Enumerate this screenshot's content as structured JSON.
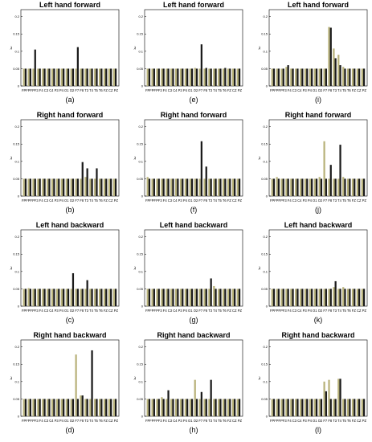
{
  "categories_text": "FPFPFPF3 F4 C3 C4 P3 P4 O1 O2 F7 F8 T3 T4 T5 T6 FZ CZ PZ",
  "ylabel": "λ",
  "yticks": [
    "0",
    "0.05",
    "0.1",
    "0.15",
    "0.2"
  ],
  "colors": {
    "series_a": "#b8b27a",
    "series_b": "#1a1a1a"
  },
  "chart_data": [
    {
      "type": "bar",
      "panel": "(a)",
      "title": "Left hand forward",
      "ylim": [
        0,
        0.22
      ],
      "series": [
        {
          "values": [
            0.05,
            0.05,
            0.05,
            0.05,
            0.05,
            0.05,
            0.05,
            0.05,
            0.05,
            0.05,
            0.05,
            0.05,
            0.05,
            0.05,
            0.05,
            0.05,
            0.05,
            0.05,
            0.05,
            0.05
          ]
        },
        {
          "values": [
            0.05,
            0.05,
            0.105,
            0.05,
            0.05,
            0.05,
            0.05,
            0.05,
            0.05,
            0.05,
            0.05,
            0.112,
            0.05,
            0.05,
            0.05,
            0.05,
            0.05,
            0.05,
            0.05,
            0.05
          ]
        }
      ]
    },
    {
      "type": "bar",
      "panel": "(e)",
      "title": "Left hand forward",
      "ylim": [
        0,
        0.22
      ],
      "series": [
        {
          "values": [
            0.05,
            0.05,
            0.05,
            0.05,
            0.05,
            0.05,
            0.05,
            0.05,
            0.05,
            0.05,
            0.052,
            0.05,
            0.05,
            0.05,
            0.05,
            0.05,
            0.05,
            0.05,
            0.05,
            0.05
          ]
        },
        {
          "values": [
            0.05,
            0.05,
            0.05,
            0.05,
            0.05,
            0.05,
            0.05,
            0.05,
            0.05,
            0.05,
            0.05,
            0.12,
            0.052,
            0.05,
            0.05,
            0.05,
            0.052,
            0.05,
            0.05,
            0.05
          ]
        }
      ]
    },
    {
      "type": "bar",
      "panel": "(i)",
      "title": "Left hand forward",
      "ylim": [
        0,
        0.22
      ],
      "series": [
        {
          "values": [
            0.05,
            0.05,
            0.05,
            0.055,
            0.05,
            0.05,
            0.05,
            0.05,
            0.05,
            0.05,
            0.05,
            0.05,
            0.17,
            0.108,
            0.09,
            0.055,
            0.05,
            0.05,
            0.05,
            0.05
          ]
        },
        {
          "values": [
            0.05,
            0.05,
            0.05,
            0.06,
            0.05,
            0.05,
            0.05,
            0.05,
            0.05,
            0.05,
            0.05,
            0.05,
            0.168,
            0.08,
            0.06,
            0.05,
            0.05,
            0.05,
            0.05,
            0.05
          ]
        }
      ]
    },
    {
      "type": "bar",
      "panel": "(b)",
      "title": "Right hand forward",
      "ylim": [
        0,
        0.22
      ],
      "series": [
        {
          "values": [
            0.05,
            0.05,
            0.05,
            0.05,
            0.05,
            0.05,
            0.05,
            0.05,
            0.05,
            0.05,
            0.05,
            0.05,
            0.05,
            0.055,
            0.05,
            0.05,
            0.05,
            0.05,
            0.05,
            0.05
          ]
        },
        {
          "values": [
            0.05,
            0.05,
            0.05,
            0.05,
            0.05,
            0.05,
            0.05,
            0.05,
            0.05,
            0.05,
            0.05,
            0.05,
            0.098,
            0.08,
            0.05,
            0.08,
            0.05,
            0.05,
            0.05,
            0.05
          ]
        }
      ]
    },
    {
      "type": "bar",
      "panel": "(f)",
      "title": "Right hand forward",
      "ylim": [
        0,
        0.22
      ],
      "series": [
        {
          "values": [
            0.055,
            0.05,
            0.05,
            0.05,
            0.05,
            0.05,
            0.05,
            0.05,
            0.05,
            0.05,
            0.05,
            0.05,
            0.05,
            0.05,
            0.05,
            0.05,
            0.05,
            0.05,
            0.05,
            0.05
          ]
        },
        {
          "values": [
            0.05,
            0.05,
            0.05,
            0.05,
            0.05,
            0.05,
            0.05,
            0.05,
            0.05,
            0.05,
            0.05,
            0.158,
            0.085,
            0.05,
            0.05,
            0.05,
            0.05,
            0.05,
            0.05,
            0.05
          ]
        }
      ]
    },
    {
      "type": "bar",
      "panel": "(j)",
      "title": "Right hand forward",
      "ylim": [
        0,
        0.22
      ],
      "series": [
        {
          "values": [
            0.05,
            0.055,
            0.05,
            0.05,
            0.05,
            0.05,
            0.05,
            0.05,
            0.05,
            0.05,
            0.055,
            0.158,
            0.05,
            0.05,
            0.05,
            0.055,
            0.05,
            0.05,
            0.05,
            0.05
          ]
        },
        {
          "values": [
            0.05,
            0.05,
            0.05,
            0.05,
            0.05,
            0.05,
            0.05,
            0.05,
            0.05,
            0.05,
            0.05,
            0.05,
            0.09,
            0.05,
            0.148,
            0.05,
            0.05,
            0.05,
            0.05,
            0.05
          ]
        }
      ]
    },
    {
      "type": "bar",
      "panel": "(c)",
      "title": "Left hand backward",
      "ylim": [
        0,
        0.22
      ],
      "series": [
        {
          "values": [
            0.05,
            0.052,
            0.05,
            0.05,
            0.05,
            0.05,
            0.05,
            0.05,
            0.05,
            0.05,
            0.05,
            0.05,
            0.05,
            0.05,
            0.05,
            0.05,
            0.05,
            0.05,
            0.05,
            0.05
          ]
        },
        {
          "values": [
            0.05,
            0.05,
            0.05,
            0.05,
            0.05,
            0.05,
            0.05,
            0.05,
            0.05,
            0.05,
            0.095,
            0.05,
            0.05,
            0.075,
            0.05,
            0.05,
            0.05,
            0.05,
            0.05,
            0.05
          ]
        }
      ]
    },
    {
      "type": "bar",
      "panel": "(g)",
      "title": "Left hand backward",
      "ylim": [
        0,
        0.22
      ],
      "series": [
        {
          "values": [
            0.05,
            0.05,
            0.05,
            0.05,
            0.05,
            0.05,
            0.05,
            0.05,
            0.05,
            0.05,
            0.05,
            0.05,
            0.05,
            0.05,
            0.058,
            0.05,
            0.05,
            0.05,
            0.05,
            0.05
          ]
        },
        {
          "values": [
            0.05,
            0.05,
            0.05,
            0.05,
            0.05,
            0.05,
            0.05,
            0.05,
            0.05,
            0.05,
            0.05,
            0.05,
            0.05,
            0.08,
            0.05,
            0.05,
            0.05,
            0.05,
            0.05,
            0.05
          ]
        }
      ]
    },
    {
      "type": "bar",
      "panel": "(k)",
      "title": "Left hand backward",
      "ylim": [
        0,
        0.22
      ],
      "series": [
        {
          "values": [
            0.05,
            0.05,
            0.05,
            0.05,
            0.05,
            0.05,
            0.05,
            0.05,
            0.05,
            0.05,
            0.05,
            0.05,
            0.05,
            0.055,
            0.05,
            0.055,
            0.05,
            0.05,
            0.05,
            0.05
          ]
        },
        {
          "values": [
            0.05,
            0.05,
            0.05,
            0.05,
            0.05,
            0.05,
            0.05,
            0.05,
            0.05,
            0.05,
            0.05,
            0.05,
            0.05,
            0.072,
            0.05,
            0.05,
            0.05,
            0.05,
            0.05,
            0.05
          ]
        }
      ]
    },
    {
      "type": "bar",
      "panel": "(d)",
      "title": "Right hand backward",
      "ylim": [
        0,
        0.22
      ],
      "series": [
        {
          "values": [
            0.05,
            0.05,
            0.05,
            0.05,
            0.05,
            0.05,
            0.05,
            0.05,
            0.05,
            0.05,
            0.05,
            0.178,
            0.06,
            0.05,
            0.05,
            0.05,
            0.05,
            0.05,
            0.05,
            0.05
          ]
        },
        {
          "values": [
            0.05,
            0.05,
            0.05,
            0.05,
            0.05,
            0.05,
            0.05,
            0.05,
            0.05,
            0.05,
            0.05,
            0.05,
            0.06,
            0.05,
            0.19,
            0.05,
            0.05,
            0.05,
            0.05,
            0.05
          ]
        }
      ]
    },
    {
      "type": "bar",
      "panel": "(h)",
      "title": "Right hand backward",
      "ylim": [
        0,
        0.22
      ],
      "series": [
        {
          "values": [
            0.05,
            0.05,
            0.05,
            0.055,
            0.05,
            0.05,
            0.05,
            0.05,
            0.05,
            0.05,
            0.105,
            0.05,
            0.05,
            0.05,
            0.05,
            0.05,
            0.05,
            0.05,
            0.05,
            0.05
          ]
        },
        {
          "values": [
            0.05,
            0.05,
            0.05,
            0.05,
            0.075,
            0.05,
            0.05,
            0.05,
            0.05,
            0.05,
            0.05,
            0.07,
            0.05,
            0.105,
            0.05,
            0.05,
            0.05,
            0.05,
            0.05,
            0.05
          ]
        }
      ]
    },
    {
      "type": "bar",
      "panel": "(l)",
      "title": "Right hand backward",
      "ylim": [
        0,
        0.22
      ],
      "series": [
        {
          "values": [
            0.05,
            0.05,
            0.05,
            0.05,
            0.05,
            0.05,
            0.05,
            0.05,
            0.05,
            0.05,
            0.05,
            0.1,
            0.105,
            0.05,
            0.108,
            0.05,
            0.05,
            0.05,
            0.05,
            0.05
          ]
        },
        {
          "values": [
            0.05,
            0.05,
            0.05,
            0.05,
            0.05,
            0.05,
            0.05,
            0.05,
            0.05,
            0.05,
            0.05,
            0.072,
            0.05,
            0.05,
            0.108,
            0.05,
            0.05,
            0.05,
            0.05,
            0.05
          ]
        }
      ]
    }
  ]
}
